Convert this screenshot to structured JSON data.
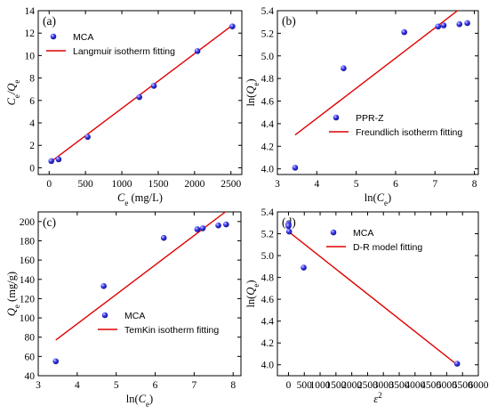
{
  "chart_data": [
    {
      "id": "a",
      "type": "scatter",
      "panel_label": "(a)",
      "xlabel_main": "C",
      "xlabel_sub": "e",
      "xlabel_unit": " (mg/L)",
      "ylabel_parts": [
        {
          "t": "C",
          "s": false
        },
        {
          "t": "e",
          "s": true
        },
        {
          "t": "/Q",
          "s": false
        },
        {
          "t": "e",
          "s": true
        }
      ],
      "xlim": [
        -150,
        2650
      ],
      "ylim": [
        -0.6,
        14
      ],
      "xticks": [
        0,
        500,
        1000,
        1500,
        2000,
        2500
      ],
      "yticks": [
        0,
        2,
        4,
        6,
        8,
        10,
        12,
        14
      ],
      "legend_position": "top-left",
      "series": [
        {
          "name": "MCA",
          "kind": "points",
          "x": [
            30,
            130,
            530,
            1240,
            1440,
            2040,
            2520
          ],
          "y": [
            0.6,
            0.75,
            2.75,
            6.3,
            7.3,
            10.4,
            12.6
          ]
        },
        {
          "name": "Langmuir isotherm fitting",
          "kind": "line",
          "x": [
            0,
            2520
          ],
          "y": [
            0.42,
            12.7
          ]
        }
      ]
    },
    {
      "id": "b",
      "type": "scatter",
      "panel_label": "(b)",
      "xlabel_parts": [
        {
          "t": "ln(",
          "s": false
        },
        {
          "t": "C",
          "s": false
        },
        {
          "t": "e",
          "s": true
        },
        {
          "t": ")",
          "s": false
        }
      ],
      "ylabel_parts": [
        {
          "t": "ln(",
          "s": false
        },
        {
          "t": "Q",
          "s": false
        },
        {
          "t": "e",
          "s": true
        },
        {
          "t": ")",
          "s": false
        }
      ],
      "xlim": [
        3,
        8.1
      ],
      "ylim": [
        3.95,
        5.4
      ],
      "xticks": [
        3,
        4,
        5,
        6,
        7,
        8
      ],
      "yticks": [
        4.0,
        4.2,
        4.4,
        4.6,
        4.8,
        5.0,
        5.2,
        5.4
      ],
      "ytick_decimals": 1,
      "legend_position": "bottom-right",
      "series": [
        {
          "name": "PPR-Z",
          "kind": "points",
          "x": [
            3.45,
            4.68,
            6.22,
            7.08,
            7.22,
            7.62,
            7.82
          ],
          "y": [
            4.01,
            4.89,
            5.21,
            5.26,
            5.27,
            5.28,
            5.29
          ]
        },
        {
          "name": "Freundlich isotherm fitting",
          "kind": "line",
          "x": [
            3.45,
            7.57
          ],
          "y": [
            4.3,
            5.4
          ]
        }
      ]
    },
    {
      "id": "c",
      "type": "scatter",
      "panel_label": "(c)",
      "xlabel_parts": [
        {
          "t": "ln(",
          "s": false
        },
        {
          "t": "C",
          "s": false
        },
        {
          "t": "e",
          "s": true
        },
        {
          "t": ")",
          "s": false
        }
      ],
      "ylabel_parts": [
        {
          "t": "Q",
          "s": false
        },
        {
          "t": "e",
          "s": true
        },
        {
          "t": " (mg/g)",
          "s": false
        }
      ],
      "xlim": [
        3,
        8.2
      ],
      "ylim": [
        40,
        210
      ],
      "xticks": [
        3,
        4,
        5,
        6,
        7,
        8
      ],
      "yticks": [
        40,
        60,
        80,
        100,
        120,
        140,
        160,
        180,
        200
      ],
      "legend_position": "bottom-right",
      "series": [
        {
          "name": "MCA",
          "kind": "points",
          "x": [
            3.45,
            4.68,
            6.22,
            7.08,
            7.22,
            7.62,
            7.82
          ],
          "y": [
            55,
            133,
            183,
            192,
            193,
            196,
            197
          ]
        },
        {
          "name": "TemKin isotherm fitting",
          "kind": "line",
          "x": [
            3.45,
            7.8
          ],
          "y": [
            77,
            210
          ]
        }
      ]
    },
    {
      "id": "d",
      "type": "scatter",
      "panel_label": "(d)",
      "xlabel_parts": [
        {
          "t": "ε",
          "s": false
        },
        {
          "t": "2",
          "s": "sup"
        }
      ],
      "ylabel_parts": [
        {
          "t": "ln(",
          "s": false
        },
        {
          "t": "Q",
          "s": false
        },
        {
          "t": "e",
          "s": true
        },
        {
          "t": ")",
          "s": false
        }
      ],
      "xlim": [
        -350,
        6000
      ],
      "ylim": [
        3.9,
        5.4
      ],
      "xticks": [
        0,
        500,
        1000,
        1500,
        2000,
        2500,
        3000,
        3500,
        4000,
        4500,
        5000,
        5500,
        6000
      ],
      "yticks": [
        4.0,
        4.2,
        4.4,
        4.6,
        4.8,
        5.0,
        5.2,
        5.4
      ],
      "ytick_decimals": 1,
      "legend_position": "top-right",
      "series": [
        {
          "name": "MCA",
          "kind": "points",
          "x": [
            0,
            0,
            0,
            20,
            480,
            5330
          ],
          "y": [
            5.29,
            5.28,
            5.27,
            5.22,
            4.89,
            4.01
          ]
        },
        {
          "name": "D-R model fitting",
          "kind": "line",
          "x": [
            0,
            5330
          ],
          "y": [
            5.22,
            4.0
          ]
        }
      ]
    }
  ],
  "colors": {
    "points": "#2929d4",
    "point_highlight": "#c8c8ff",
    "fit_line": "#e00000",
    "axis": "#000000"
  }
}
